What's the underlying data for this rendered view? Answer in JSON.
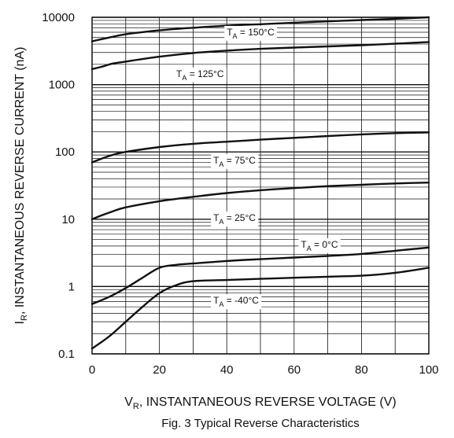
{
  "chart_data": {
    "type": "line",
    "title": "Fig. 3  Typical Reverse Characteristics",
    "xlabel": {
      "main": "V",
      "sub": "R",
      "rest": ", INSTANTANEOUS REVERSE VOLTAGE (V)"
    },
    "ylabel": {
      "main": "I",
      "sub": "R",
      "rest": ", INSTANTANEOUS REVERSE CURRENT (nA)"
    },
    "xlim": [
      0,
      100
    ],
    "ylim": [
      0.1,
      10000
    ],
    "y_scale": "log",
    "grid": true,
    "x_ticks": [
      {
        "value": 0,
        "label": "0"
      },
      {
        "value": 20,
        "label": "20"
      },
      {
        "value": 40,
        "label": "40"
      },
      {
        "value": 60,
        "label": "60"
      },
      {
        "value": 80,
        "label": "80"
      },
      {
        "value": 100,
        "label": "100"
      }
    ],
    "y_ticks": [
      {
        "value": 0.1,
        "label": "0.1"
      },
      {
        "value": 1,
        "label": "1"
      },
      {
        "value": 10,
        "label": "10"
      },
      {
        "value": 100,
        "label": "100"
      },
      {
        "value": 1000,
        "label": "1000"
      },
      {
        "value": 10000,
        "label": "10000"
      }
    ],
    "series": [
      {
        "label": {
          "main": "T",
          "sub": "A",
          "rest": " = 150°C"
        },
        "label_at": [
          40,
          6000
        ],
        "x": [
          0,
          5,
          10,
          20,
          30,
          40,
          50,
          60,
          70,
          80,
          90,
          100
        ],
        "y": [
          4400,
          5000,
          5600,
          6400,
          7000,
          7500,
          7900,
          8300,
          8700,
          9100,
          9500,
          10000
        ]
      },
      {
        "label": {
          "main": "T",
          "sub": "A",
          "rest": " = 125°C"
        },
        "label_at": [
          25,
          1450
        ],
        "x": [
          0,
          3,
          6,
          10,
          20,
          30,
          40,
          50,
          60,
          70,
          80,
          90,
          100
        ],
        "y": [
          1700,
          1850,
          2050,
          2200,
          2600,
          2950,
          3200,
          3400,
          3550,
          3700,
          3850,
          4050,
          4300
        ]
      },
      {
        "label": {
          "main": "T",
          "sub": "A",
          "rest": " = 75°C"
        },
        "label_at": [
          36,
          75
        ],
        "x": [
          0,
          3,
          6,
          10,
          20,
          30,
          40,
          50,
          60,
          70,
          80,
          90,
          100
        ],
        "y": [
          70,
          80,
          90,
          100,
          118,
          132,
          142,
          152,
          162,
          172,
          182,
          190,
          195
        ]
      },
      {
        "label": {
          "main": "T",
          "sub": "A",
          "rest": " = 25°C"
        },
        "label_at": [
          36,
          10.5
        ],
        "x": [
          0,
          3,
          6,
          10,
          20,
          30,
          40,
          50,
          60,
          70,
          80,
          90,
          100
        ],
        "y": [
          10,
          11.5,
          13,
          15,
          18.5,
          21.5,
          24.5,
          27,
          29,
          31,
          32.5,
          34,
          35
        ]
      },
      {
        "label": {
          "main": "T",
          "sub": "A",
          "rest": " = 0°C"
        },
        "label_at": [
          62,
          4.2
        ],
        "x": [
          0,
          5,
          10,
          15,
          20,
          25,
          30,
          40,
          50,
          60,
          70,
          80,
          90,
          100
        ],
        "y": [
          0.55,
          0.7,
          0.95,
          1.35,
          1.9,
          2.1,
          2.2,
          2.4,
          2.55,
          2.7,
          2.85,
          3.05,
          3.4,
          3.8
        ]
      },
      {
        "label": {
          "main": "T",
          "sub": "A",
          "rest": " = -40°C"
        },
        "label_at": [
          36,
          0.62
        ],
        "x": [
          0,
          5,
          10,
          15,
          20,
          25,
          30,
          40,
          50,
          60,
          70,
          80,
          90,
          100
        ],
        "y": [
          0.12,
          0.18,
          0.3,
          0.5,
          0.8,
          1.05,
          1.2,
          1.25,
          1.3,
          1.35,
          1.4,
          1.45,
          1.6,
          1.9
        ]
      }
    ]
  },
  "colors": {
    "line": "#111111",
    "grid": "#111111",
    "background": "#ffffff"
  }
}
